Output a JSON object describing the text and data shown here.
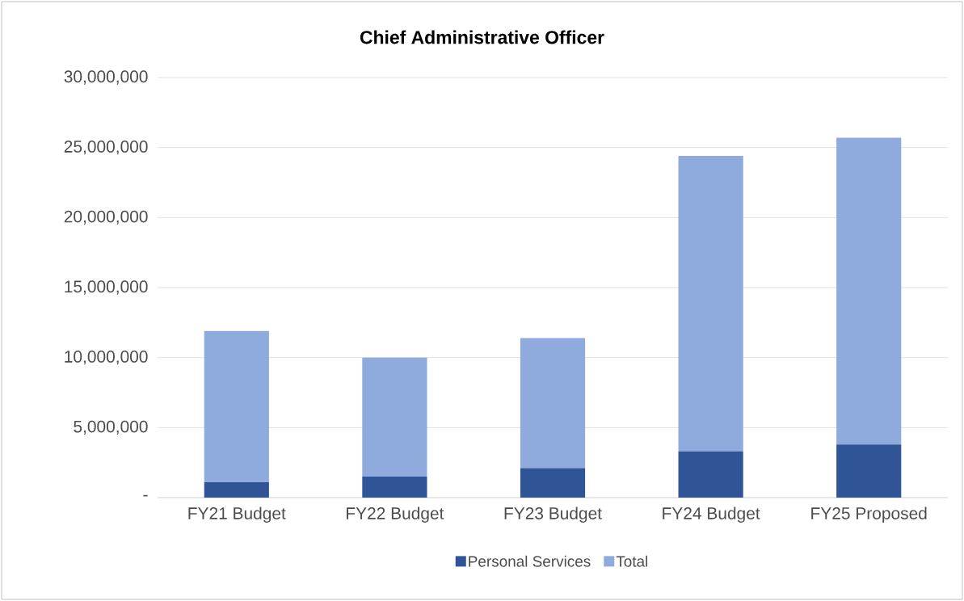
{
  "chart_data": {
    "type": "bar",
    "title": "Chief Administrative Officer",
    "categories": [
      "FY21 Budget",
      "FY22 Budget",
      "FY23 Budget",
      "FY24 Budget",
      "FY25 Proposed"
    ],
    "stacked": true,
    "series": [
      {
        "name": "Personal Services",
        "color": "#2f5597",
        "values": [
          1100000,
          1500000,
          2100000,
          3300000,
          3800000
        ]
      },
      {
        "name": "Total",
        "color": "#8faadc",
        "values": [
          10800000,
          8500000,
          9300000,
          21100000,
          21900000
        ]
      }
    ],
    "ylim": [
      0,
      30000000
    ],
    "yticks": [
      {
        "value": 0,
        "label": "-"
      },
      {
        "value": 5000000,
        "label": "5,000,000"
      },
      {
        "value": 10000000,
        "label": "10,000,000"
      },
      {
        "value": 15000000,
        "label": "15,000,000"
      },
      {
        "value": 20000000,
        "label": "20,000,000"
      },
      {
        "value": 25000000,
        "label": "25,000,000"
      },
      {
        "value": 30000000,
        "label": "30,000,000"
      }
    ],
    "grid": "y",
    "legend": "bottom"
  }
}
